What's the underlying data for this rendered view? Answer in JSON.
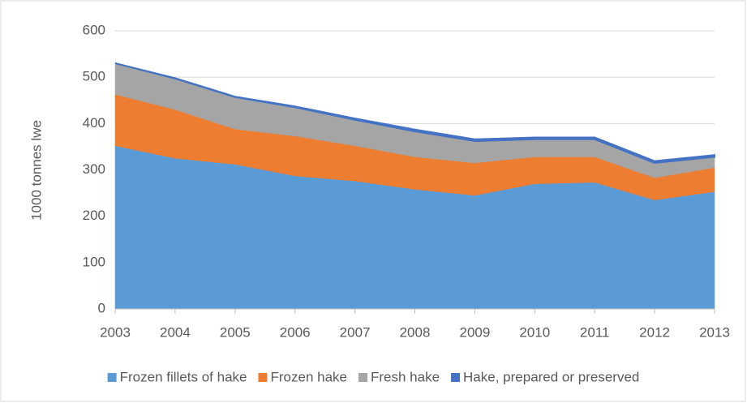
{
  "chart_data": {
    "type": "stacked_area",
    "y_label": "1000 tonnes lwe",
    "categories": [
      "2003",
      "2004",
      "2005",
      "2006",
      "2007",
      "2008",
      "2009",
      "2010",
      "2011",
      "2012",
      "2013"
    ],
    "series": [
      {
        "name": "Frozen fillets of hake",
        "color": "#5b9bd5",
        "values": [
          352,
          325,
          312,
          287,
          276,
          258,
          245,
          270,
          273,
          235,
          253
        ]
      },
      {
        "name": "Frozen hake",
        "color": "#ed7d31",
        "values": [
          111,
          105,
          76,
          86,
          76,
          70,
          70,
          58,
          55,
          48,
          52
        ]
      },
      {
        "name": "Fresh hake",
        "color": "#a5a5a5",
        "values": [
          67,
          67,
          69,
          62,
          56,
          55,
          47,
          38,
          38,
          32,
          23
        ]
      },
      {
        "name": "Hake, prepared or preserved",
        "color": "#4472c4",
        "values": [
          0,
          1,
          1,
          2,
          3,
          4,
          4,
          4,
          4,
          4,
          4
        ]
      }
    ],
    "ylim": [
      0,
      600
    ],
    "yticks": [
      0,
      100,
      200,
      300,
      400,
      500,
      600
    ],
    "grid": true,
    "legend": "bottom"
  }
}
